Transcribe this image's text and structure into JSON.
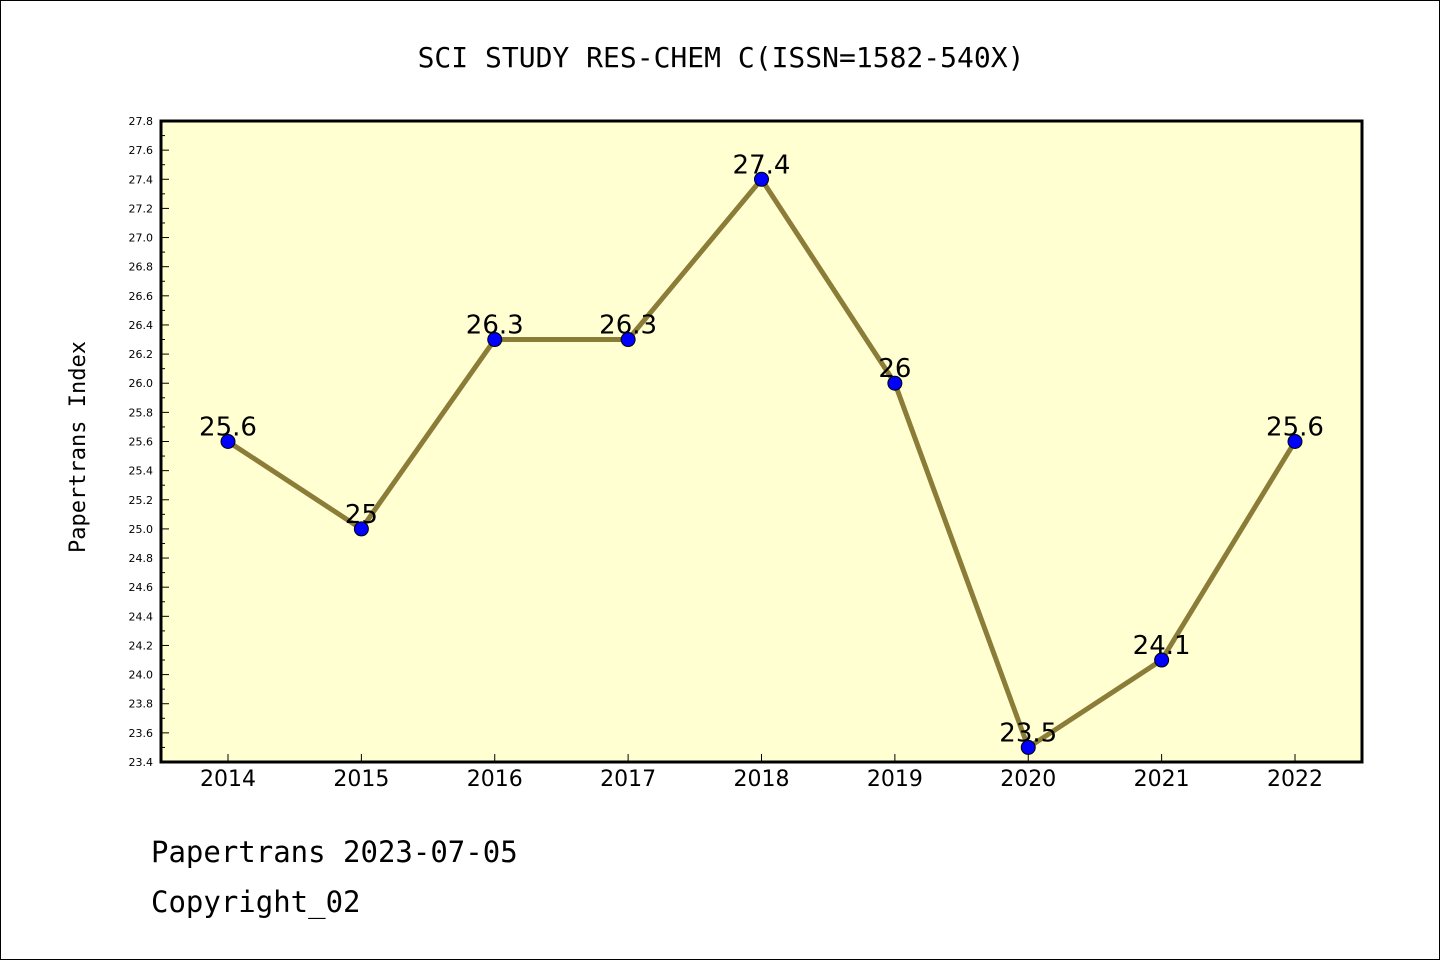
{
  "chart_data": {
    "type": "line",
    "title": "SCI STUDY RES-CHEM C(ISSN=1582-540X)",
    "ylabel": "Papertrans Index",
    "xlabel": "",
    "categories": [
      "2014",
      "2015",
      "2016",
      "2017",
      "2018",
      "2019",
      "2020",
      "2021",
      "2022"
    ],
    "series": [
      {
        "values": [
          25.6,
          25.0,
          26.3,
          26.3,
          27.4,
          26.0,
          23.5,
          24.1,
          25.6
        ]
      }
    ],
    "data_labels": [
      "25.6",
      "25",
      "26.3",
      "26.3",
      "27.4",
      "26",
      "23.5",
      "24.1",
      "25.6"
    ],
    "ylim": [
      23.4,
      27.8
    ],
    "yticks": [
      "23.4",
      "23.6",
      "23.8",
      "24.0",
      "24.2",
      "24.4",
      "24.6",
      "24.8",
      "25.0",
      "25.2",
      "25.4",
      "25.6",
      "25.8",
      "26.0",
      "26.2",
      "26.4",
      "26.6",
      "26.8",
      "27.0",
      "27.2",
      "27.4",
      "27.6",
      "27.8"
    ],
    "grid": false,
    "colors": {
      "plot_background": "#ffffd2",
      "line": "#8b7d38",
      "marker": "#0000ff"
    }
  },
  "footer": {
    "line1": "Papertrans 2023-07-05",
    "line2": "Copyright_02"
  }
}
